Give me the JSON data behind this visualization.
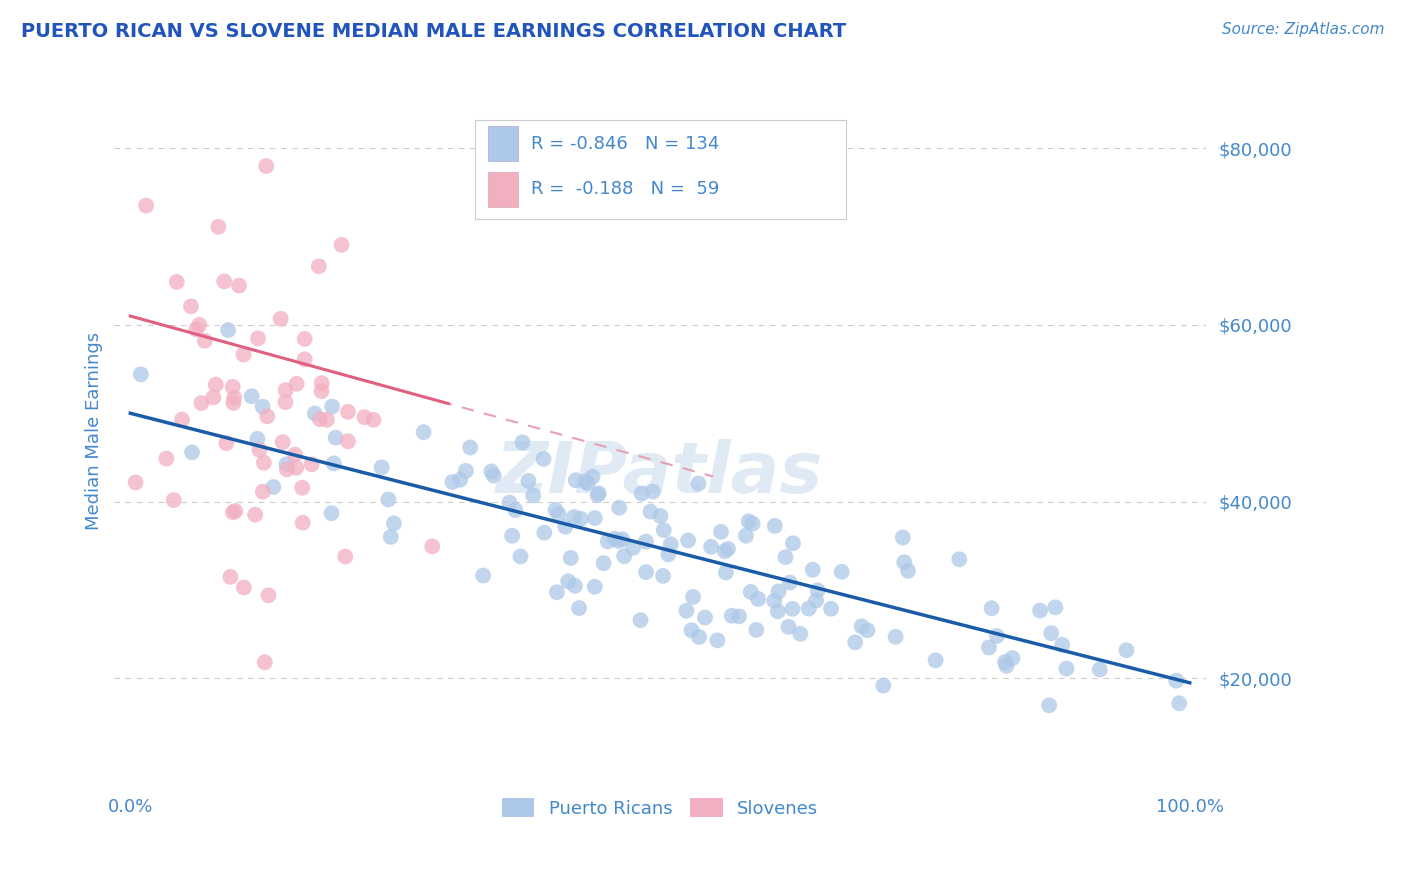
{
  "title": "PUERTO RICAN VS SLOVENE MEDIAN MALE EARNINGS CORRELATION CHART",
  "source_text": "Source: ZipAtlas.com",
  "ylabel": "Median Male Earnings",
  "xlim": [
    -1.5,
    101.5
  ],
  "ylim": [
    8000,
    88000
  ],
  "yticks": [
    20000,
    40000,
    60000,
    80000
  ],
  "ytick_labels": [
    "$20,000",
    "$40,000",
    "$60,000",
    "$80,000"
  ],
  "xtick_labels": [
    "0.0%",
    "100.0%"
  ],
  "blue_R": -0.846,
  "blue_N": 134,
  "pink_R": -0.188,
  "pink_N": 59,
  "blue_dot_color": "#adc8e8",
  "pink_dot_color": "#f2afc0",
  "blue_line_color": "#1a5ca8",
  "pink_solid_color": "#e06080",
  "pink_dash_color": "#e8a0b0",
  "title_color": "#2255bb",
  "axis_label_color": "#4488cc",
  "tick_color": "#4488cc",
  "watermark": "ZIPatlas",
  "legend_blue_label": "Puerto Ricans",
  "legend_pink_label": "Slovenes",
  "background_color": "#ffffff",
  "grid_color": "#cccccc",
  "blue_y0": 50000,
  "blue_y100": 19500,
  "pink_y0": 61000,
  "pink_y100": 28000,
  "pink_solid_x_end": 30,
  "pink_x_max": 55
}
